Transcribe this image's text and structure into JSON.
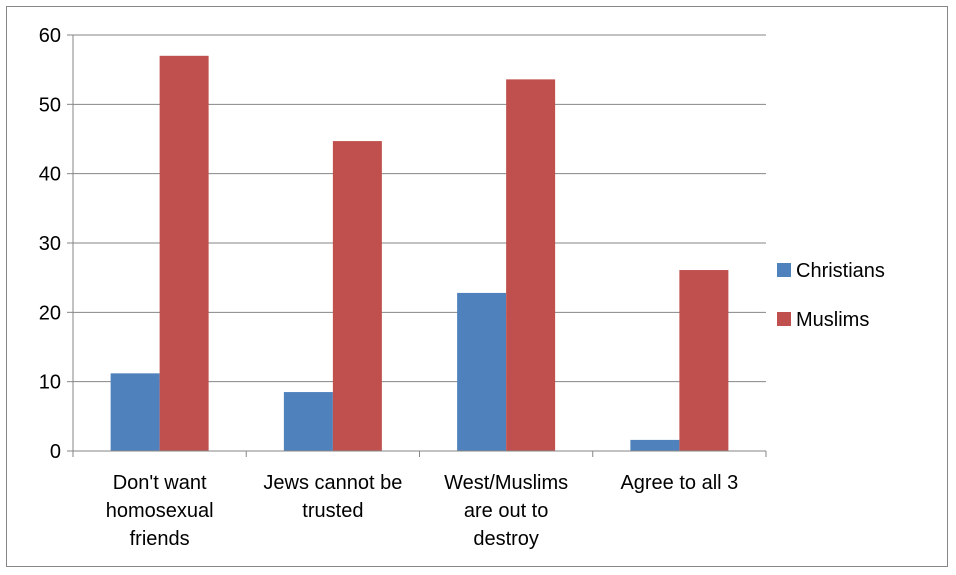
{
  "chart_data": {
    "type": "bar",
    "categories": [
      [
        "Don't want",
        "homosexual",
        "friends"
      ],
      [
        "Jews cannot be",
        "trusted"
      ],
      [
        "West/Muslims",
        "are out to",
        "destroy"
      ],
      [
        "Agree to all 3"
      ]
    ],
    "series": [
      {
        "name": "Christians",
        "color": "#4F81BD",
        "values": [
          11.2,
          8.5,
          22.8,
          1.6
        ]
      },
      {
        "name": "Muslims",
        "color": "#C0504D",
        "values": [
          57,
          44.7,
          53.6,
          26.1
        ]
      }
    ],
    "y_ticks": [
      "0",
      "10",
      "20",
      "30",
      "40",
      "50",
      "60"
    ],
    "ylim": [
      0,
      60
    ],
    "grid": true,
    "legend_position": "right"
  }
}
